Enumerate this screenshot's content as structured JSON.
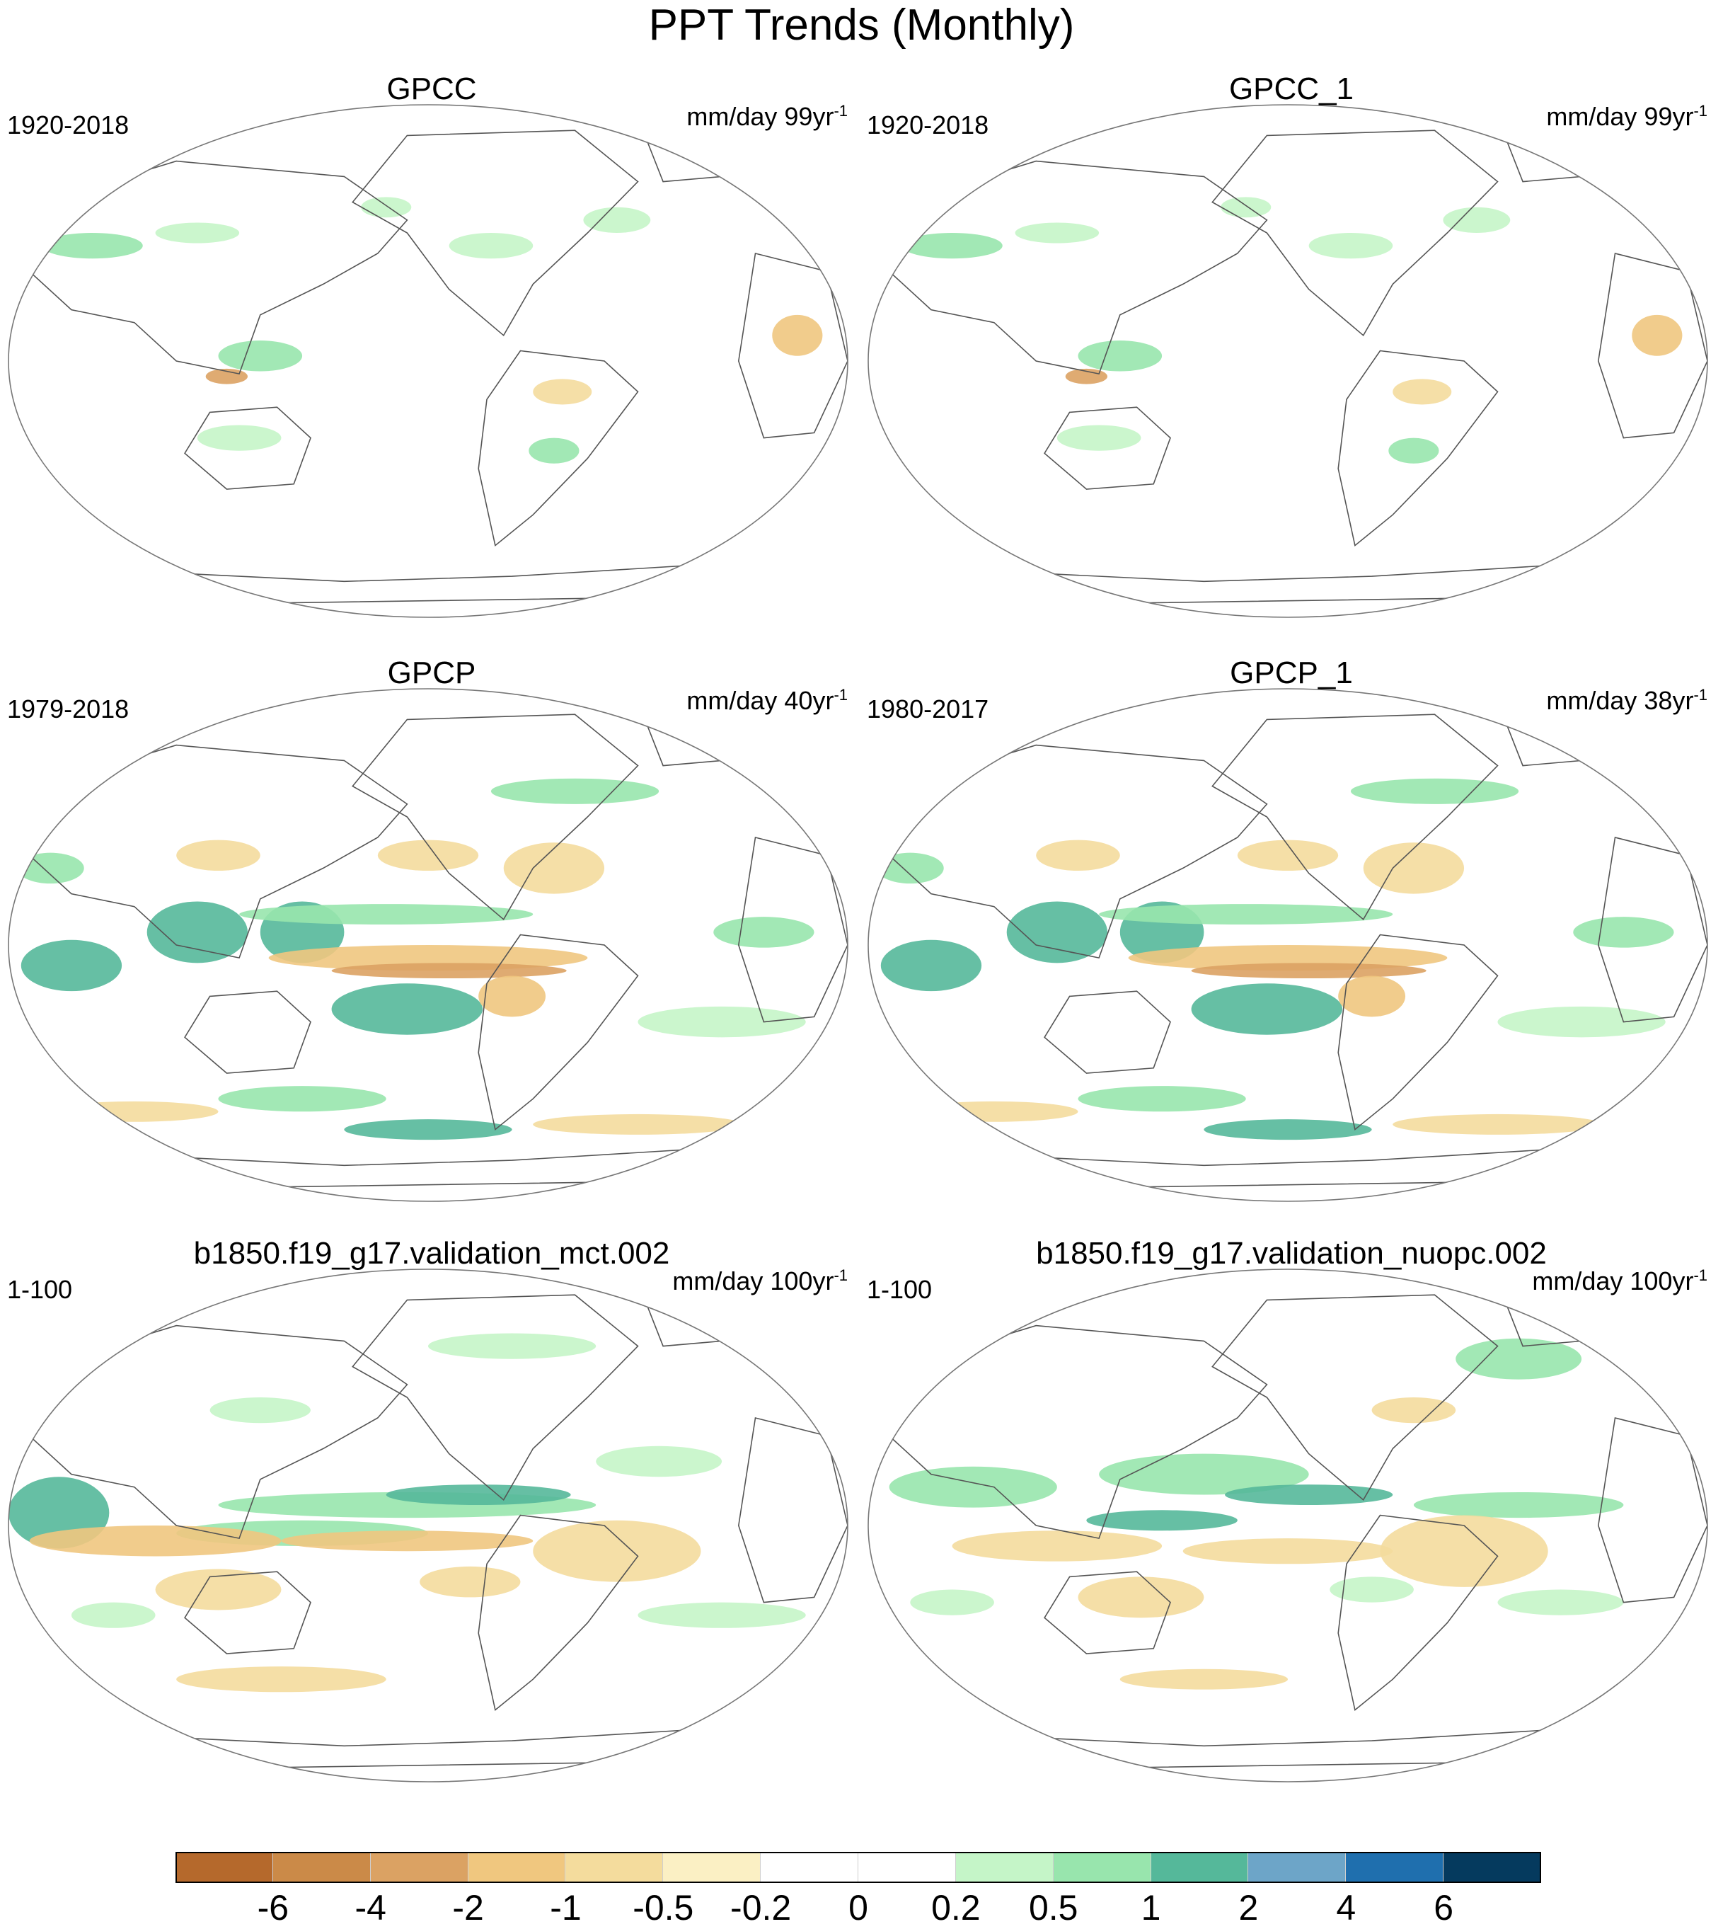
{
  "figure": {
    "title": "PPT Trends (Monthly)"
  },
  "panels": [
    {
      "title": "GPCC",
      "period": "1920-2018",
      "units_prefix": "mm/day 99yr",
      "units_sup": "-1",
      "pattern": "land-sparse"
    },
    {
      "title": "GPCC_1",
      "period": "1920-2018",
      "units_prefix": "mm/day 99yr",
      "units_sup": "-1",
      "pattern": "land-sparse"
    },
    {
      "title": "GPCP",
      "period": "1979-2018",
      "units_prefix": "mm/day 40yr",
      "units_sup": "-1",
      "pattern": "satellite"
    },
    {
      "title": "GPCP_1",
      "period": "1980-2017",
      "units_prefix": "mm/day 38yr",
      "units_sup": "-1",
      "pattern": "satellite"
    },
    {
      "title": "b1850.f19_g17.validation_mct.002",
      "period": "1-100",
      "units_prefix": "mm/day 100yr",
      "units_sup": "-1",
      "pattern": "model-a"
    },
    {
      "title": "b1850.f19_g17.validation_nuopc.002",
      "period": "1-100",
      "units_prefix": "mm/day 100yr",
      "units_sup": "-1",
      "pattern": "model-b"
    }
  ],
  "colorbar": {
    "colors": [
      "#b5692c",
      "#cb8a48",
      "#dba263",
      "#f0c77f",
      "#f4dc9d",
      "#fbf0c4",
      "#ffffff",
      "#ffffff",
      "#c5f5c8",
      "#98e5ad",
      "#55b89a",
      "#6da5c8",
      "#1f6fae",
      "#053a5e"
    ],
    "labels": [
      "-6",
      "-4",
      "-2",
      "-1",
      "-0.5",
      "-0.2",
      "0",
      "0.2",
      "0.5",
      "1",
      "2",
      "4",
      "6"
    ]
  }
}
